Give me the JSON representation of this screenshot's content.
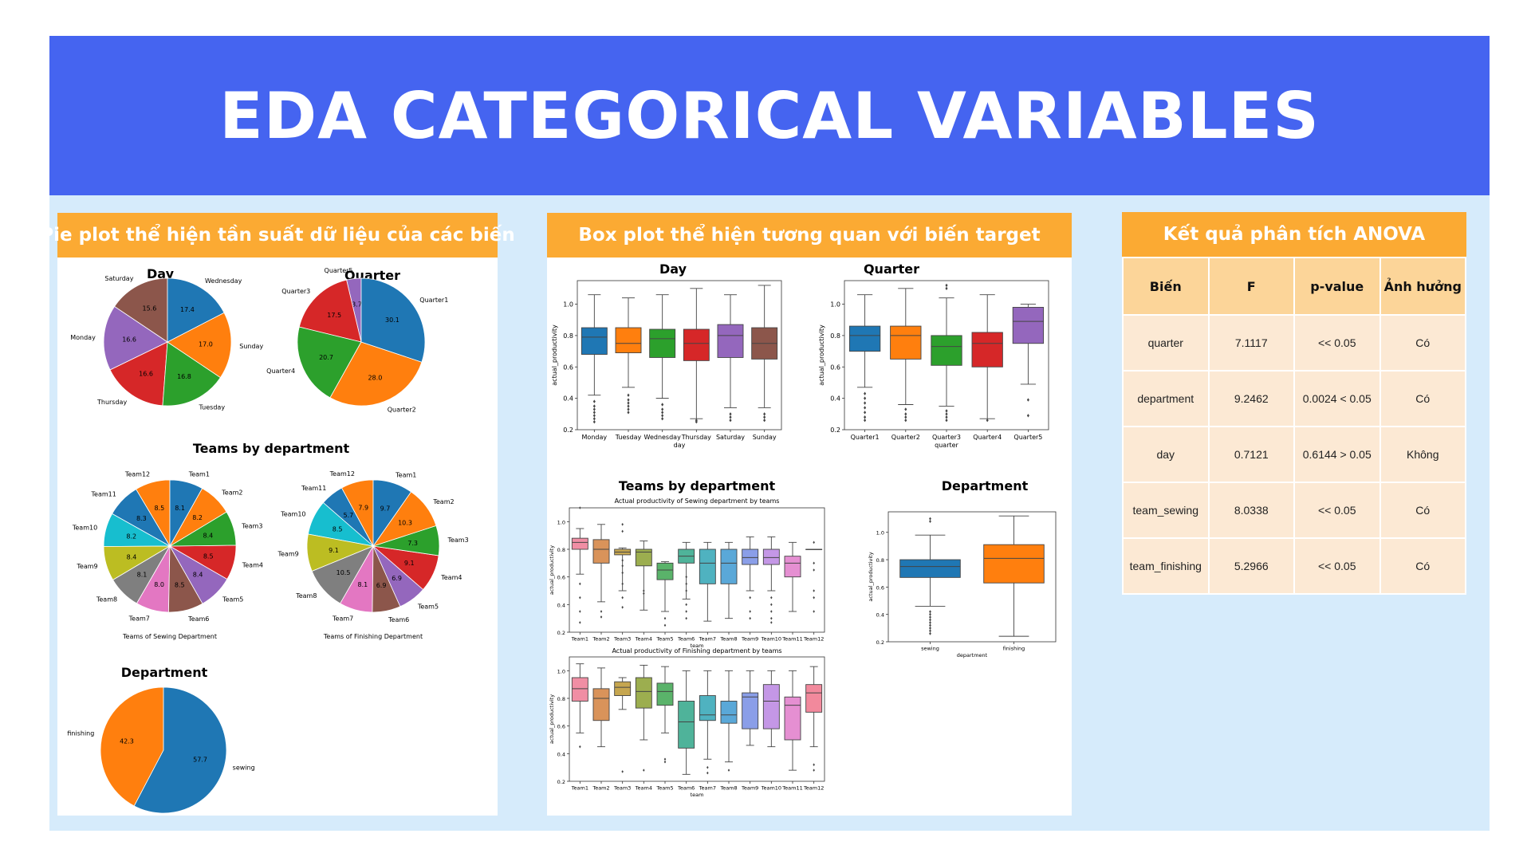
{
  "header": {
    "title": "EDA CATEGORICAL VARIABLES"
  },
  "pie_panel": {
    "title": "Pie plot thể hiện tần suất dữ liệu của các biến"
  },
  "box_panel": {
    "title": "Box plot thể hiện tương quan với biến target"
  },
  "anova": {
    "title": "Kết quả phân tích ANOVA",
    "columns": [
      "Biến",
      "F",
      "p-value",
      "Ảnh hưởng"
    ],
    "rows": [
      [
        "quarter",
        "7.1117",
        "<< 0.05",
        "Có"
      ],
      [
        "department",
        "9.2462",
        "0.0024 < 0.05",
        "Có"
      ],
      [
        "day",
        "0.7121",
        "0.6144 > 0.05",
        "Không"
      ],
      [
        "team_sewing",
        "8.0338",
        "<< 0.05",
        "Có"
      ],
      [
        "team_finishing",
        "5.2966",
        "<< 0.05",
        "Có"
      ]
    ]
  },
  "chart_data": [
    {
      "type": "pie",
      "title": "Day",
      "labels": [
        "Saturday",
        "Monday",
        "Thursday",
        "Tuesday",
        "Sunday",
        "Wednesday"
      ],
      "values": [
        15.6,
        16.6,
        16.6,
        16.8,
        17.0,
        17.4
      ],
      "colors": [
        "#8c564b",
        "#9467bd",
        "#d62728",
        "#2ca02c",
        "#ff7f0e",
        "#1f77b4"
      ]
    },
    {
      "type": "pie",
      "title": "Quarter",
      "labels": [
        "Quarter5",
        "Quarter3",
        "Quarter4",
        "Quarter2",
        "Quarter1"
      ],
      "values": [
        3.7,
        17.5,
        20.7,
        28.0,
        30.1
      ],
      "colors": [
        "#9467bd",
        "#d62728",
        "#2ca02c",
        "#ff7f0e",
        "#1f77b4"
      ]
    },
    {
      "type": "pie",
      "title": "Teams by department",
      "xlabel": "Teams of Sewing Department",
      "labels": [
        "Team12",
        "Team11",
        "Team10",
        "Team9",
        "Team8",
        "Team7",
        "Team6",
        "Team5",
        "Team4",
        "Team3",
        "Team2",
        "Team1"
      ],
      "values": [
        8.5,
        8.3,
        8.2,
        8.4,
        8.1,
        8.0,
        8.5,
        8.4,
        8.5,
        8.4,
        8.2,
        8.1
      ],
      "colors": [
        "#ff7f0e",
        "#1f77b4",
        "#17becf",
        "#bcbd22",
        "#7f7f7f",
        "#e377c2",
        "#8c564b",
        "#9467bd",
        "#d62728",
        "#2ca02c",
        "#ff7f0e",
        "#1f77b4"
      ]
    },
    {
      "type": "pie",
      "xlabel": "Teams of Finishing Department",
      "labels": [
        "Team12",
        "Team11",
        "Team10",
        "Team9",
        "Team8",
        "Team7",
        "Team6",
        "Team5",
        "Team4",
        "Team3",
        "Team2",
        "Team1"
      ],
      "values": [
        7.9,
        5.7,
        8.5,
        9.1,
        10.5,
        8.1,
        6.9,
        6.9,
        9.1,
        7.3,
        10.3,
        9.7
      ],
      "colors": [
        "#ff7f0e",
        "#1f77b4",
        "#17becf",
        "#bcbd22",
        "#7f7f7f",
        "#e377c2",
        "#8c564b",
        "#9467bd",
        "#d62728",
        "#2ca02c",
        "#ff7f0e",
        "#1f77b4"
      ]
    },
    {
      "type": "pie",
      "title": "Department",
      "labels": [
        "finishing",
        "sewing"
      ],
      "values": [
        42.3,
        57.7
      ],
      "colors": [
        "#ff7f0e",
        "#1f77b4"
      ]
    },
    {
      "type": "box",
      "title": "Day",
      "xlabel": "day",
      "ylabel": "actual_productivity",
      "ylim": [
        0.2,
        1.15
      ],
      "yticks": [
        0.2,
        0.4,
        0.6,
        0.8,
        1.0
      ],
      "categories": [
        "Monday",
        "Tuesday",
        "Wednesday",
        "Thursday",
        "Saturday",
        "Sunday"
      ],
      "colors": [
        "#1f77b4",
        "#ff7f0e",
        "#2ca02c",
        "#d62728",
        "#9467bd",
        "#8c564b"
      ],
      "boxes": [
        {
          "whislo": 0.42,
          "q1": 0.68,
          "med": 0.79,
          "q3": 0.85,
          "whishi": 1.06,
          "fliers": [
            0.38,
            0.35,
            0.33,
            0.31,
            0.29,
            0.27,
            0.25
          ]
        },
        {
          "whislo": 0.47,
          "q1": 0.69,
          "med": 0.75,
          "q3": 0.85,
          "whishi": 1.04,
          "fliers": [
            0.42,
            0.39,
            0.37,
            0.35,
            0.33,
            0.31
          ]
        },
        {
          "whislo": 0.4,
          "q1": 0.66,
          "med": 0.78,
          "q3": 0.84,
          "whishi": 1.06,
          "fliers": [
            0.36,
            0.33,
            0.31,
            0.29,
            0.27
          ]
        },
        {
          "whislo": 0.27,
          "q1": 0.64,
          "med": 0.75,
          "q3": 0.84,
          "whishi": 1.1,
          "fliers": [
            0.26,
            0.25
          ]
        },
        {
          "whislo": 0.34,
          "q1": 0.66,
          "med": 0.8,
          "q3": 0.87,
          "whishi": 1.06,
          "fliers": [
            0.3,
            0.28,
            0.26
          ]
        },
        {
          "whislo": 0.34,
          "q1": 0.65,
          "med": 0.75,
          "q3": 0.85,
          "whishi": 1.12,
          "fliers": [
            0.3,
            0.28,
            0.26
          ]
        }
      ]
    },
    {
      "type": "box",
      "title": "Quarter",
      "xlabel": "quarter",
      "ylabel": "actual_productivity",
      "ylim": [
        0.2,
        1.15
      ],
      "yticks": [
        0.2,
        0.4,
        0.6,
        0.8,
        1.0
      ],
      "categories": [
        "Quarter1",
        "Quarter2",
        "Quarter3",
        "Quarter4",
        "Quarter5"
      ],
      "colors": [
        "#1f77b4",
        "#ff7f0e",
        "#2ca02c",
        "#d62728",
        "#9467bd"
      ],
      "boxes": [
        {
          "whislo": 0.47,
          "q1": 0.7,
          "med": 0.8,
          "q3": 0.86,
          "whishi": 1.06,
          "fliers": [
            0.43,
            0.4,
            0.37,
            0.34,
            0.31,
            0.28,
            0.26
          ]
        },
        {
          "whislo": 0.36,
          "q1": 0.65,
          "med": 0.8,
          "q3": 0.86,
          "whishi": 1.1,
          "fliers": [
            0.33,
            0.3,
            0.28,
            0.26
          ]
        },
        {
          "whislo": 0.35,
          "q1": 0.61,
          "med": 0.73,
          "q3": 0.8,
          "whishi": 1.04,
          "fliers": [
            0.32,
            0.3,
            0.28,
            0.26,
            1.12,
            1.1
          ]
        },
        {
          "whislo": 0.27,
          "q1": 0.6,
          "med": 0.75,
          "q3": 0.82,
          "whishi": 1.06,
          "fliers": [
            0.26
          ]
        },
        {
          "whislo": 0.49,
          "q1": 0.75,
          "med": 0.89,
          "q3": 0.98,
          "whishi": 1.0,
          "fliers": [
            0.39,
            0.29
          ]
        }
      ]
    },
    {
      "type": "box",
      "title": "Teams by department",
      "subtitle": "Actual productivity of Sewing department by teams",
      "xlabel": "team",
      "ylabel": "actual_productivity",
      "ylim": [
        0.2,
        1.1
      ],
      "yticks": [
        0.2,
        0.4,
        0.6,
        0.8,
        1.0
      ],
      "categories": [
        "Team1",
        "Team2",
        "Team3",
        "Team4",
        "Team5",
        "Team6",
        "Team7",
        "Team8",
        "Team9",
        "Team10",
        "Team11",
        "Team12"
      ],
      "colors": [
        "#f08ea4",
        "#d9935a",
        "#c6a64f",
        "#9cae4f",
        "#5ab36a",
        "#4fb39a",
        "#4fb2c0",
        "#5aa8d8",
        "#8a9ee8",
        "#c497e6",
        "#e58fd2",
        "#f2899c"
      ],
      "boxes": [
        {
          "whislo": 0.62,
          "q1": 0.8,
          "med": 0.85,
          "q3": 0.88,
          "whishi": 0.95,
          "fliers": [
            1.1,
            0.55,
            0.45,
            0.35,
            0.27
          ]
        },
        {
          "whislo": 0.42,
          "q1": 0.7,
          "med": 0.8,
          "q3": 0.87,
          "whishi": 0.98,
          "fliers": [
            0.35,
            0.31
          ]
        },
        {
          "whislo": 0.5,
          "q1": 0.76,
          "med": 0.78,
          "q3": 0.8,
          "whishi": 0.81,
          "fliers": [
            0.98,
            0.93,
            0.72,
            0.68,
            0.63,
            0.55,
            0.45,
            0.38
          ]
        },
        {
          "whislo": 0.36,
          "q1": 0.68,
          "med": 0.78,
          "q3": 0.8,
          "whishi": 0.86,
          "fliers": [
            0.5,
            0.48
          ]
        },
        {
          "whislo": 0.35,
          "q1": 0.58,
          "med": 0.65,
          "q3": 0.7,
          "whishi": 0.71,
          "fliers": [
            0.3,
            0.25
          ]
        },
        {
          "whislo": 0.44,
          "q1": 0.7,
          "med": 0.75,
          "q3": 0.8,
          "whishi": 0.85,
          "fliers": [
            0.6,
            0.55,
            0.5,
            0.4,
            0.35,
            0.3
          ]
        },
        {
          "whislo": 0.28,
          "q1": 0.55,
          "med": 0.7,
          "q3": 0.8,
          "whishi": 0.85,
          "fliers": []
        },
        {
          "whislo": 0.3,
          "q1": 0.55,
          "med": 0.7,
          "q3": 0.8,
          "whishi": 0.85,
          "fliers": []
        },
        {
          "whislo": 0.5,
          "q1": 0.69,
          "med": 0.74,
          "q3": 0.8,
          "whishi": 0.89,
          "fliers": [
            0.45,
            0.35,
            0.3
          ]
        },
        {
          "whislo": 0.5,
          "q1": 0.69,
          "med": 0.74,
          "q3": 0.8,
          "whishi": 0.89,
          "fliers": [
            0.45,
            0.4,
            0.35,
            0.3,
            0.27
          ]
        },
        {
          "whislo": 0.35,
          "q1": 0.6,
          "med": 0.7,
          "q3": 0.75,
          "whishi": 0.85,
          "fliers": []
        },
        {
          "whislo": 0.8,
          "q1": 0.8,
          "med": 0.8,
          "q3": 0.8,
          "whishi": 0.8,
          "fliers": [
            0.85,
            0.7,
            0.65,
            0.5,
            0.45,
            0.35
          ]
        }
      ]
    },
    {
      "type": "box",
      "subtitle": "Actual productivity of Finishing department by teams",
      "xlabel": "team",
      "ylabel": "actual_productivity",
      "ylim": [
        0.2,
        1.1
      ],
      "yticks": [
        0.2,
        0.4,
        0.6,
        0.8,
        1.0
      ],
      "categories": [
        "Team1",
        "Team2",
        "Team3",
        "Team4",
        "Team5",
        "Team6",
        "Team7",
        "Team8",
        "Team9",
        "Team10",
        "Team11",
        "Team12"
      ],
      "colors": [
        "#f08ea4",
        "#d9935a",
        "#c6a64f",
        "#9cae4f",
        "#5ab36a",
        "#4fb39a",
        "#4fb2c0",
        "#5aa8d8",
        "#8a9ee8",
        "#c497e6",
        "#e58fd2",
        "#f2899c"
      ],
      "boxes": [
        {
          "whislo": 0.55,
          "q1": 0.78,
          "med": 0.87,
          "q3": 0.95,
          "whishi": 1.05,
          "fliers": [
            0.45
          ]
        },
        {
          "whislo": 0.45,
          "q1": 0.64,
          "med": 0.8,
          "q3": 0.87,
          "whishi": 1.02,
          "fliers": []
        },
        {
          "whislo": 0.72,
          "q1": 0.82,
          "med": 0.88,
          "q3": 0.92,
          "whishi": 0.95,
          "fliers": [
            0.27
          ]
        },
        {
          "whislo": 0.5,
          "q1": 0.73,
          "med": 0.85,
          "q3": 0.95,
          "whishi": 1.04,
          "fliers": [
            0.28
          ]
        },
        {
          "whislo": 0.55,
          "q1": 0.75,
          "med": 0.85,
          "q3": 0.91,
          "whishi": 1.03,
          "fliers": [
            0.36,
            0.34
          ]
        },
        {
          "whislo": 0.25,
          "q1": 0.44,
          "med": 0.63,
          "q3": 0.78,
          "whishi": 1.0,
          "fliers": []
        },
        {
          "whislo": 0.36,
          "q1": 0.64,
          "med": 0.68,
          "q3": 0.82,
          "whishi": 1.0,
          "fliers": [
            0.3,
            0.26
          ]
        },
        {
          "whislo": 0.34,
          "q1": 0.62,
          "med": 0.68,
          "q3": 0.78,
          "whishi": 1.0,
          "fliers": [
            0.28
          ]
        },
        {
          "whislo": 0.46,
          "q1": 0.58,
          "med": 0.81,
          "q3": 0.84,
          "whishi": 1.0,
          "fliers": []
        },
        {
          "whislo": 0.45,
          "q1": 0.58,
          "med": 0.78,
          "q3": 0.9,
          "whishi": 1.0,
          "fliers": []
        },
        {
          "whislo": 0.28,
          "q1": 0.5,
          "med": 0.75,
          "q3": 0.81,
          "whishi": 1.0,
          "fliers": []
        },
        {
          "whislo": 0.45,
          "q1": 0.7,
          "med": 0.84,
          "q3": 0.9,
          "whishi": 1.03,
          "fliers": [
            0.32,
            0.28
          ]
        }
      ]
    },
    {
      "type": "box",
      "title": "Department",
      "xlabel": "department",
      "ylabel": "actual_productivity",
      "ylim": [
        0.2,
        1.15
      ],
      "yticks": [
        0.2,
        0.4,
        0.6,
        0.8,
        1.0
      ],
      "categories": [
        "sewing",
        "finishing"
      ],
      "colors": [
        "#1f77b4",
        "#ff7f0e"
      ],
      "boxes": [
        {
          "whislo": 0.46,
          "q1": 0.67,
          "med": 0.75,
          "q3": 0.8,
          "whishi": 0.98,
          "fliers": [
            1.1,
            1.08,
            0.42,
            0.4,
            0.38,
            0.36,
            0.34,
            0.32,
            0.3,
            0.28,
            0.26
          ]
        },
        {
          "whislo": 0.24,
          "q1": 0.63,
          "med": 0.81,
          "q3": 0.91,
          "whishi": 1.12,
          "fliers": []
        }
      ]
    }
  ]
}
